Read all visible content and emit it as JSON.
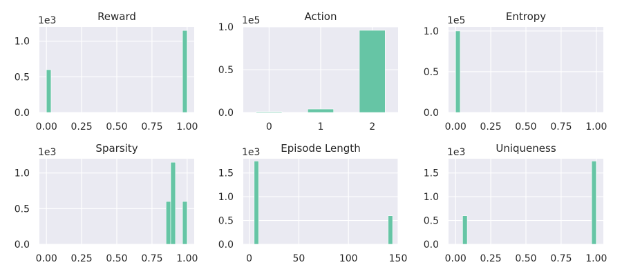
{
  "chart_data": [
    {
      "type": "bar",
      "title": "Reward",
      "xlabel": "",
      "ylabel": "",
      "xlim": [
        -0.05,
        1.05
      ],
      "ylim": [
        0,
        1.2
      ],
      "xticks": [
        0,
        0.25,
        0.5,
        0.75,
        1.0
      ],
      "xticklabels": [
        "0.00",
        "0.25",
        "0.50",
        "0.75",
        "1.00"
      ],
      "yticks": [
        0,
        0.5,
        1.0
      ],
      "yticklabels": [
        "0.0",
        "0.5",
        "1.0"
      ],
      "yoffset": "1e3",
      "grid": true,
      "bars": [
        {
          "x0": 0.0,
          "x1": 0.033,
          "value": 0.6
        },
        {
          "x0": 0.967,
          "x1": 1.0,
          "value": 1.15
        }
      ]
    },
    {
      "type": "bar",
      "title": "Action",
      "xlabel": "",
      "ylabel": "",
      "xlim": [
        -0.5,
        2.5
      ],
      "ylim": [
        0,
        1.0
      ],
      "xticks": [
        0,
        1,
        2
      ],
      "xticklabels": [
        "0",
        "1",
        "2"
      ],
      "yticks": [
        0,
        0.5,
        1.0
      ],
      "yticklabels": [
        "0.0",
        "0.5",
        "1.0"
      ],
      "yoffset": "1e5",
      "grid": true,
      "bars": [
        {
          "x0": -0.25,
          "x1": 0.25,
          "value": 0.01
        },
        {
          "x0": 0.75,
          "x1": 1.25,
          "value": 0.04
        },
        {
          "x0": 1.75,
          "x1": 2.25,
          "value": 0.96
        }
      ]
    },
    {
      "type": "bar",
      "title": "Entropy",
      "xlabel": "",
      "ylabel": "",
      "xlim": [
        -0.05,
        1.05
      ],
      "ylim": [
        0,
        1.05
      ],
      "xticks": [
        0,
        0.25,
        0.5,
        0.75,
        1.0
      ],
      "xticklabels": [
        "0.00",
        "0.25",
        "0.50",
        "0.75",
        "1.00"
      ],
      "yticks": [
        0,
        0.5,
        1.0
      ],
      "yticklabels": [
        "0.0",
        "0.5",
        "1.0"
      ],
      "yoffset": "1e5",
      "grid": true,
      "bars": [
        {
          "x0": 0.0,
          "x1": 0.033,
          "value": 1.0
        }
      ]
    },
    {
      "type": "bar",
      "title": "Sparsity",
      "xlabel": "",
      "ylabel": "",
      "xlim": [
        -0.05,
        1.05
      ],
      "ylim": [
        0,
        1.2
      ],
      "xticks": [
        0,
        0.25,
        0.5,
        0.75,
        1.0
      ],
      "xticklabels": [
        "0.00",
        "0.25",
        "0.50",
        "0.75",
        "1.00"
      ],
      "yticks": [
        0,
        0.5,
        1.0
      ],
      "yticklabels": [
        "0.0",
        "0.5",
        "1.0"
      ],
      "yoffset": "1e3",
      "grid": true,
      "bars": [
        {
          "x0": 0.85,
          "x1": 0.883,
          "value": 0.6
        },
        {
          "x0": 0.883,
          "x1": 0.917,
          "value": 1.15
        },
        {
          "x0": 0.967,
          "x1": 1.0,
          "value": 0.6
        }
      ]
    },
    {
      "type": "bar",
      "title": "Episode Length",
      "xlabel": "",
      "ylabel": "",
      "xlim": [
        -6,
        150
      ],
      "ylim": [
        0,
        1.8
      ],
      "xticks": [
        0,
        50,
        100,
        150
      ],
      "xticklabels": [
        "0",
        "50",
        "100",
        "150"
      ],
      "yticks": [
        0,
        0.5,
        1.0,
        1.5
      ],
      "yticklabels": [
        "0.0",
        "0.5",
        "1.0",
        "1.5"
      ],
      "yoffset": "1e3",
      "grid": true,
      "bars": [
        {
          "x0": 5,
          "x1": 9.5,
          "value": 1.75
        },
        {
          "x0": 140,
          "x1": 144.5,
          "value": 0.6
        }
      ]
    },
    {
      "type": "bar",
      "title": "Uniqueness",
      "xlabel": "",
      "ylabel": "",
      "xlim": [
        -0.05,
        1.05
      ],
      "ylim": [
        0,
        1.8
      ],
      "xticks": [
        0,
        0.25,
        0.5,
        0.75,
        1.0
      ],
      "xticklabels": [
        "0.00",
        "0.25",
        "0.50",
        "0.75",
        "1.00"
      ],
      "yticks": [
        0,
        0.5,
        1.0,
        1.5
      ],
      "yticklabels": [
        "0.0",
        "0.5",
        "1.0",
        "1.5"
      ],
      "yoffset": "1e3",
      "grid": true,
      "bars": [
        {
          "x0": 0.05,
          "x1": 0.083,
          "value": 0.6
        },
        {
          "x0": 0.967,
          "x1": 1.0,
          "value": 1.75
        }
      ]
    }
  ],
  "colors": {
    "bar": "#66c5a5",
    "background": "#eaeaf2",
    "grid": "#ffffff",
    "text": "#262626"
  }
}
